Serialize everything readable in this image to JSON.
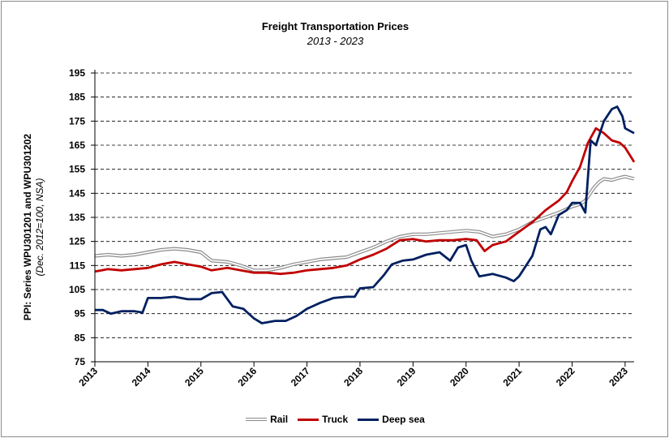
{
  "chart_data": {
    "type": "line",
    "title": "Freight Transportation Prices",
    "subtitle": "2013 - 2023",
    "ylabel": "PPI: Series WPU301201 and WPU301202",
    "ylabel2": "(Dec. 2012=100, NSA)",
    "ylim": [
      75,
      195
    ],
    "yticks": [
      75,
      85,
      95,
      105,
      115,
      125,
      135,
      145,
      155,
      165,
      175,
      185,
      195
    ],
    "xlim": [
      2013.0,
      2023.17
    ],
    "xticks": [
      "2013",
      "2014",
      "2015",
      "2016",
      "2017",
      "2018",
      "2019",
      "2020",
      "2021",
      "2022",
      "2023"
    ],
    "grid": "horizontal dashed",
    "legend_position": "bottom",
    "series": [
      {
        "name": "Rail",
        "color": "#8c8c8c",
        "style": "double",
        "x": [
          2013.0,
          2013.25,
          2013.5,
          2013.75,
          2014.0,
          2014.25,
          2014.5,
          2014.75,
          2015.0,
          2015.2,
          2015.5,
          2015.75,
          2016.0,
          2016.25,
          2016.5,
          2016.75,
          2017.0,
          2017.25,
          2017.5,
          2017.75,
          2018.0,
          2018.25,
          2018.5,
          2018.75,
          2019.0,
          2019.25,
          2019.5,
          2019.75,
          2020.0,
          2020.25,
          2020.5,
          2020.75,
          2021.0,
          2021.25,
          2021.5,
          2021.75,
          2022.0,
          2022.15,
          2022.25,
          2022.4,
          2022.5,
          2022.6,
          2022.75,
          2022.9,
          2023.0,
          2023.17
        ],
        "values": [
          119,
          119.5,
          119,
          119.5,
          120.5,
          121.5,
          122,
          121.5,
          120.5,
          117,
          116.5,
          115,
          113,
          113,
          114,
          115.5,
          116.5,
          117.5,
          118,
          118.5,
          120.5,
          122.5,
          125,
          127,
          128,
          128,
          128.5,
          129,
          129.5,
          129,
          127,
          128,
          130,
          133,
          135,
          137,
          139.5,
          140.5,
          142,
          147,
          149.5,
          151,
          150.5,
          151.5,
          152,
          151
        ]
      },
      {
        "name": "Truck",
        "color": "#c00000",
        "style": "solid",
        "x": [
          2013.0,
          2013.25,
          2013.5,
          2013.75,
          2014.0,
          2014.25,
          2014.5,
          2014.75,
          2015.0,
          2015.2,
          2015.5,
          2015.75,
          2016.0,
          2016.25,
          2016.5,
          2016.75,
          2017.0,
          2017.25,
          2017.5,
          2017.75,
          2018.0,
          2018.25,
          2018.5,
          2018.75,
          2019.0,
          2019.25,
          2019.5,
          2019.75,
          2020.0,
          2020.2,
          2020.35,
          2020.5,
          2020.75,
          2021.0,
          2021.25,
          2021.5,
          2021.75,
          2021.9,
          2022.0,
          2022.15,
          2022.3,
          2022.45,
          2022.6,
          2022.75,
          2022.9,
          2023.0,
          2023.17
        ],
        "values": [
          112.5,
          113.5,
          113,
          113.5,
          114,
          115.5,
          116.5,
          115.5,
          114.5,
          113,
          114,
          113,
          112,
          112,
          111.5,
          112,
          113,
          113.5,
          114,
          115,
          117.5,
          119.5,
          122,
          125.5,
          126,
          125,
          125.5,
          125.5,
          126,
          125.5,
          121,
          123.5,
          125,
          129,
          133,
          138,
          142,
          145.5,
          150,
          156,
          166,
          172,
          170,
          167,
          166,
          164,
          158
        ]
      },
      {
        "name": "Deep sea",
        "color": "#002060",
        "style": "solid",
        "x": [
          2013.0,
          2013.15,
          2013.3,
          2013.5,
          2013.75,
          2013.9,
          2014.0,
          2014.25,
          2014.5,
          2014.75,
          2015.0,
          2015.2,
          2015.4,
          2015.6,
          2015.8,
          2016.0,
          2016.15,
          2016.4,
          2016.6,
          2016.8,
          2017.0,
          2017.25,
          2017.5,
          2017.75,
          2017.9,
          2018.0,
          2018.25,
          2018.45,
          2018.6,
          2018.8,
          2019.0,
          2019.25,
          2019.5,
          2019.7,
          2019.85,
          2020.0,
          2020.1,
          2020.25,
          2020.5,
          2020.75,
          2020.9,
          2021.0,
          2021.25,
          2021.4,
          2021.5,
          2021.6,
          2021.75,
          2021.9,
          2022.0,
          2022.15,
          2022.25,
          2022.35,
          2022.45,
          2022.6,
          2022.75,
          2022.85,
          2022.95,
          2023.0,
          2023.17
        ],
        "values": [
          96.5,
          96.5,
          95,
          96,
          96,
          95.5,
          101.5,
          101.5,
          102,
          101,
          101,
          103.5,
          104,
          98,
          97,
          93,
          91,
          92,
          92,
          94,
          97,
          99.5,
          101.5,
          102,
          102,
          105.5,
          106,
          111,
          115.5,
          117,
          117.5,
          119.5,
          120.5,
          117,
          122.5,
          123.5,
          117,
          110.5,
          111.5,
          110,
          108.5,
          110.5,
          119,
          130,
          131,
          128,
          136,
          138,
          141,
          141,
          137,
          167,
          165,
          175,
          180,
          181,
          177,
          172,
          170
        ]
      }
    ]
  }
}
